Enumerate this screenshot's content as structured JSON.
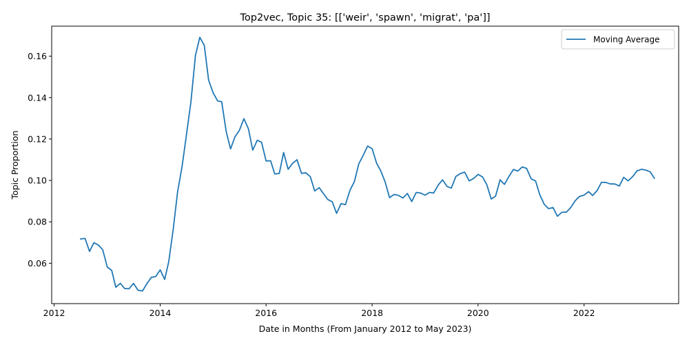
{
  "chart_data": {
    "type": "line",
    "title": "Top2vec, Topic 35: [['weir', 'spawn', 'migrat', 'pa']]",
    "xlabel": "Date in Months (From January 2012 to May 2023)",
    "ylabel": "Topic Proportion",
    "x_ticks": [
      "2012",
      "2014",
      "2016",
      "2018",
      "2020",
      "2022"
    ],
    "y_ticks": [
      "0.06",
      "0.08",
      "0.10",
      "0.12",
      "0.14",
      "0.16"
    ],
    "xlim": [
      "2011-12-15",
      "2023-10-15"
    ],
    "ylim": [
      0.0405,
      0.1745
    ],
    "grid": false,
    "legend_position": "top-right",
    "series": [
      {
        "name": "Moving Average",
        "color": "#1f77b4",
        "x": [
          "2012-07",
          "2012-08",
          "2012-09",
          "2012-10",
          "2012-11",
          "2012-12",
          "2013-01",
          "2013-02",
          "2013-03",
          "2013-04",
          "2013-05",
          "2013-06",
          "2013-07",
          "2013-08",
          "2013-09",
          "2013-10",
          "2013-11",
          "2013-12",
          "2014-01",
          "2014-02",
          "2014-03",
          "2014-04",
          "2014-05",
          "2014-06",
          "2014-07",
          "2014-08",
          "2014-09",
          "2014-10",
          "2014-11",
          "2014-12",
          "2015-01",
          "2015-02",
          "2015-03",
          "2015-04",
          "2015-05",
          "2015-06",
          "2015-07",
          "2015-08",
          "2015-09",
          "2015-10",
          "2015-11",
          "2015-12",
          "2016-01",
          "2016-02",
          "2016-03",
          "2016-04",
          "2016-05",
          "2016-06",
          "2016-07",
          "2016-08",
          "2016-09",
          "2016-10",
          "2016-11",
          "2016-12",
          "2017-01",
          "2017-02",
          "2017-03",
          "2017-04",
          "2017-05",
          "2017-06",
          "2017-07",
          "2017-08",
          "2017-09",
          "2017-10",
          "2017-11",
          "2017-12",
          "2018-01",
          "2018-02",
          "2018-03",
          "2018-04",
          "2018-05",
          "2018-06",
          "2018-07",
          "2018-08",
          "2018-09",
          "2018-10",
          "2018-11",
          "2018-12",
          "2019-01",
          "2019-02",
          "2019-03",
          "2019-04",
          "2019-05",
          "2019-06",
          "2019-07",
          "2019-08",
          "2019-09",
          "2019-10",
          "2019-11",
          "2019-12",
          "2020-01",
          "2020-02",
          "2020-03",
          "2020-04",
          "2020-05",
          "2020-06",
          "2020-07",
          "2020-08",
          "2020-09",
          "2020-10",
          "2020-11",
          "2020-12",
          "2021-01",
          "2021-02",
          "2021-03",
          "2021-04",
          "2021-05",
          "2021-06",
          "2021-07",
          "2021-08",
          "2021-09",
          "2021-10",
          "2021-11",
          "2021-12",
          "2022-01",
          "2022-02",
          "2022-03",
          "2022-04",
          "2022-05",
          "2022-06",
          "2022-07",
          "2022-08",
          "2022-09",
          "2022-10",
          "2022-11",
          "2022-12",
          "2023-01",
          "2023-02",
          "2023-03",
          "2023-04",
          "2023-05"
        ],
        "y": [
          0.0717,
          0.072,
          0.0657,
          0.0699,
          0.0688,
          0.0665,
          0.0582,
          0.0565,
          0.0484,
          0.0503,
          0.0478,
          0.0477,
          0.0503,
          0.047,
          0.0466,
          0.0501,
          0.0532,
          0.0536,
          0.0568,
          0.0522,
          0.0608,
          0.0765,
          0.0945,
          0.1068,
          0.122,
          0.138,
          0.1603,
          0.1691,
          0.1652,
          0.1484,
          0.1423,
          0.1384,
          0.138,
          0.1236,
          0.1152,
          0.1211,
          0.1242,
          0.1298,
          0.125,
          0.1146,
          0.1194,
          0.1184,
          0.1094,
          0.1095,
          0.1031,
          0.1034,
          0.1135,
          0.1054,
          0.1082,
          0.11,
          0.1034,
          0.1037,
          0.1018,
          0.0949,
          0.0965,
          0.0935,
          0.0908,
          0.0897,
          0.0841,
          0.0888,
          0.0883,
          0.0952,
          0.0995,
          0.108,
          0.1122,
          0.1166,
          0.1153,
          0.1083,
          0.1047,
          0.0992,
          0.0917,
          0.0932,
          0.0928,
          0.0915,
          0.0937,
          0.0898,
          0.0942,
          0.0939,
          0.0929,
          0.0942,
          0.0939,
          0.0977,
          0.1003,
          0.0971,
          0.0963,
          0.1019,
          0.1033,
          0.104,
          0.0998,
          0.1009,
          0.1029,
          0.1017,
          0.098,
          0.091,
          0.0924,
          0.1003,
          0.0981,
          0.1019,
          0.1053,
          0.1045,
          0.1065,
          0.1058,
          0.1008,
          0.0997,
          0.0932,
          0.0885,
          0.0864,
          0.0869,
          0.0827,
          0.0846,
          0.0847,
          0.0869,
          0.0902,
          0.0923,
          0.0929,
          0.0946,
          0.0927,
          0.0951,
          0.0991,
          0.099,
          0.0983,
          0.0983,
          0.0973,
          0.1015,
          0.0998,
          0.1018,
          0.1046,
          0.1054,
          0.105,
          0.1042,
          0.101
        ]
      }
    ]
  }
}
